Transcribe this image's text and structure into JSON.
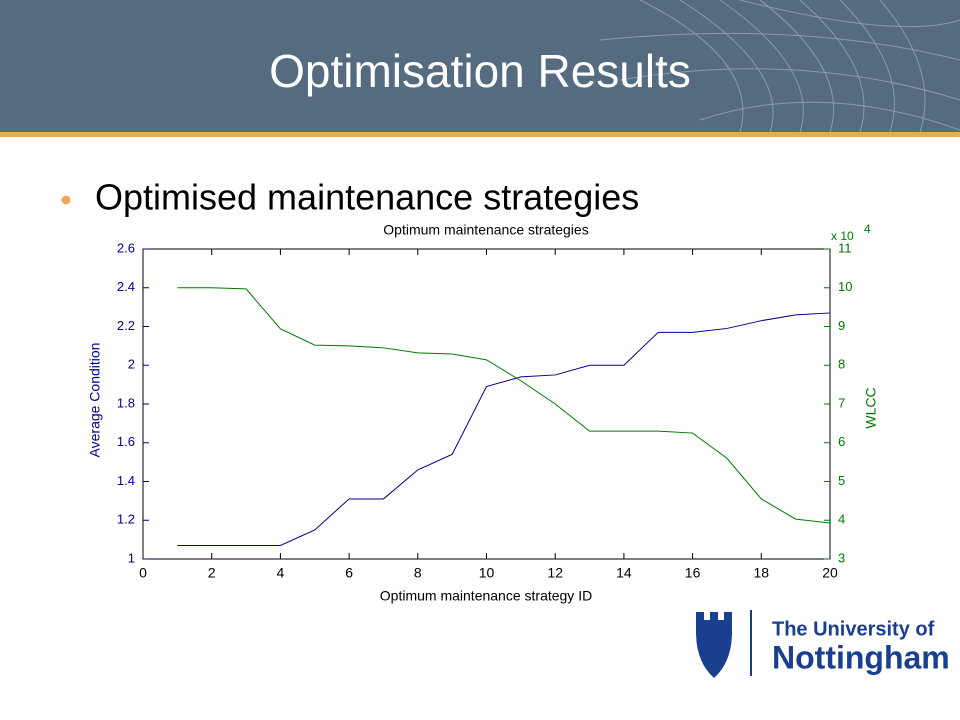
{
  "header": {
    "title": "Optimisation Results"
  },
  "bullet": "Optimised maintenance strategies",
  "logo": {
    "line1": "The University of",
    "line2": "Nottingham"
  },
  "chart_data": {
    "type": "line",
    "title": "Optimum maintenance strategies",
    "xlabel": "Optimum maintenance strategy ID",
    "ylabel": "Average Condition",
    "y2label": "WLCC",
    "y2_multiplier": "x 10",
    "y2_multiplier_exp": "4",
    "x": [
      1,
      2,
      3,
      4,
      5,
      6,
      7,
      8,
      9,
      10,
      11,
      12,
      13,
      14,
      15,
      16,
      17,
      18,
      19,
      20
    ],
    "series": [
      {
        "name": "Average Condition",
        "color": "#00008b",
        "values": [
          1.07,
          1.07,
          1.07,
          1.07,
          1.15,
          1.31,
          1.31,
          1.46,
          1.54,
          1.89,
          1.94,
          1.95,
          2.0,
          2.0,
          2.17,
          2.17,
          2.19,
          2.23,
          2.26,
          2.27
        ]
      },
      {
        "name": "WLCC",
        "color": "#007a00",
        "axis": "y2",
        "values": [
          10.0,
          10.0,
          9.97,
          8.94,
          8.52,
          8.5,
          8.45,
          8.32,
          8.29,
          8.14,
          7.6,
          7.0,
          6.3,
          6.3,
          6.3,
          6.25,
          5.6,
          4.55,
          4.03,
          3.93
        ]
      }
    ],
    "xlim": [
      0,
      20
    ],
    "xticks": [
      0,
      2,
      4,
      6,
      8,
      10,
      12,
      14,
      16,
      18,
      20
    ],
    "ylim": [
      1,
      2.6
    ],
    "yticks": [
      1,
      1.2,
      1.4,
      1.6,
      1.8,
      2,
      2.2,
      2.4,
      2.6
    ],
    "y2lim": [
      3,
      11
    ],
    "y2ticks": [
      3,
      4,
      5,
      6,
      7,
      8,
      9,
      10,
      11
    ],
    "grid": false
  }
}
